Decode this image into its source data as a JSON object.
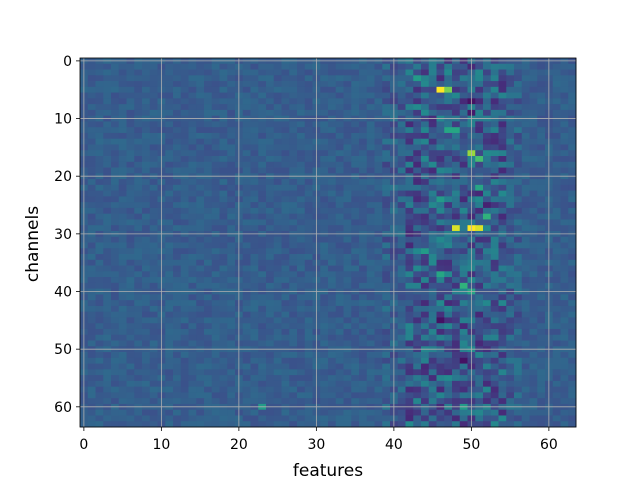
{
  "chart_data": {
    "type": "heatmap",
    "title": "",
    "xlabel": "features",
    "ylabel": "channels",
    "x_range": [
      -0.5,
      63.5
    ],
    "y_range": [
      -0.5,
      63.5
    ],
    "y_inverted": true,
    "x_ticks": [
      0,
      10,
      20,
      30,
      40,
      50,
      60
    ],
    "y_ticks": [
      0,
      10,
      20,
      30,
      40,
      50,
      60
    ],
    "grid": true,
    "colormap": "viridis",
    "shape": [
      64,
      64
    ],
    "baseline_value": 0.3,
    "hotspots": [
      {
        "channel": 5,
        "feature": 46,
        "value": 1.0
      },
      {
        "channel": 5,
        "feature": 47,
        "value": 0.8
      },
      {
        "channel": 16,
        "feature": 50,
        "value": 0.85
      },
      {
        "channel": 17,
        "feature": 51,
        "value": 0.7
      },
      {
        "channel": 29,
        "feature": 48,
        "value": 0.95
      },
      {
        "channel": 29,
        "feature": 50,
        "value": 1.0
      },
      {
        "channel": 29,
        "feature": 51,
        "value": 0.95
      },
      {
        "channel": 27,
        "feature": 52,
        "value": 0.65
      },
      {
        "channel": 39,
        "feature": 49,
        "value": 0.65
      },
      {
        "channel": 40,
        "feature": 50,
        "value": 0.6
      },
      {
        "channel": 12,
        "feature": 47,
        "value": 0.6
      },
      {
        "channel": 12,
        "feature": 48,
        "value": 0.6
      },
      {
        "channel": 22,
        "feature": 51,
        "value": 0.6
      },
      {
        "channel": 37,
        "feature": 46,
        "value": 0.6
      },
      {
        "channel": 3,
        "feature": 43,
        "value": 0.55
      },
      {
        "channel": 7,
        "feature": 50,
        "value": 0.05
      },
      {
        "channel": 9,
        "feature": 50,
        "value": 0.08
      },
      {
        "channel": 25,
        "feature": 52,
        "value": 0.1
      },
      {
        "channel": 45,
        "feature": 46,
        "value": 0.05
      },
      {
        "channel": 52,
        "feature": 49,
        "value": 0.05
      },
      {
        "channel": 60,
        "feature": 49,
        "value": 0.55
      },
      {
        "channel": 60,
        "feature": 23,
        "value": 0.55
      },
      {
        "channel": 24,
        "feature": 46,
        "value": 0.55
      },
      {
        "channel": 33,
        "feature": 44,
        "value": 0.55
      }
    ]
  }
}
